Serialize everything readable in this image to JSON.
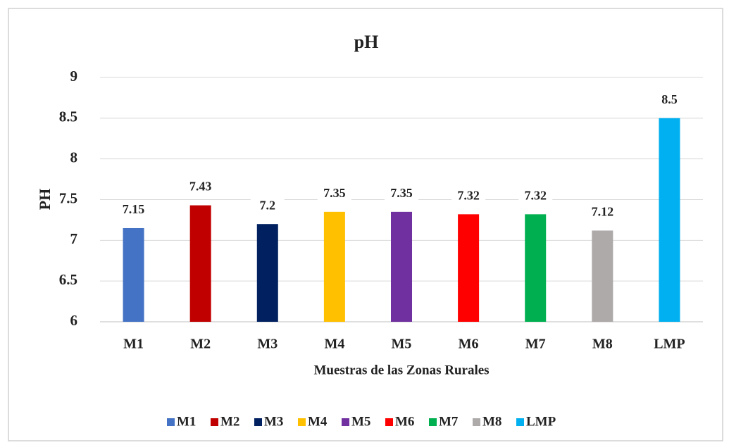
{
  "chart_data": {
    "type": "bar",
    "title": "pH",
    "categories": [
      "M1",
      "M2",
      "M3",
      "M4",
      "M5",
      "M6",
      "M7",
      "M8",
      "LMP"
    ],
    "values": [
      7.15,
      7.43,
      7.2,
      7.35,
      7.35,
      7.32,
      7.32,
      7.12,
      8.5
    ],
    "colors": [
      "#4472c4",
      "#c00000",
      "#002060",
      "#ffc000",
      "#7030a0",
      "#ff0000",
      "#00b050",
      "#aeaaaa",
      "#00b0f0"
    ],
    "ylabel": "PH",
    "xlabel": "Muestras de las Zonas Rurales",
    "ylim": [
      6,
      9
    ],
    "yticks": [
      6,
      6.5,
      7,
      7.5,
      8,
      8.5,
      9
    ],
    "grid": true,
    "legend": "bottom"
  }
}
